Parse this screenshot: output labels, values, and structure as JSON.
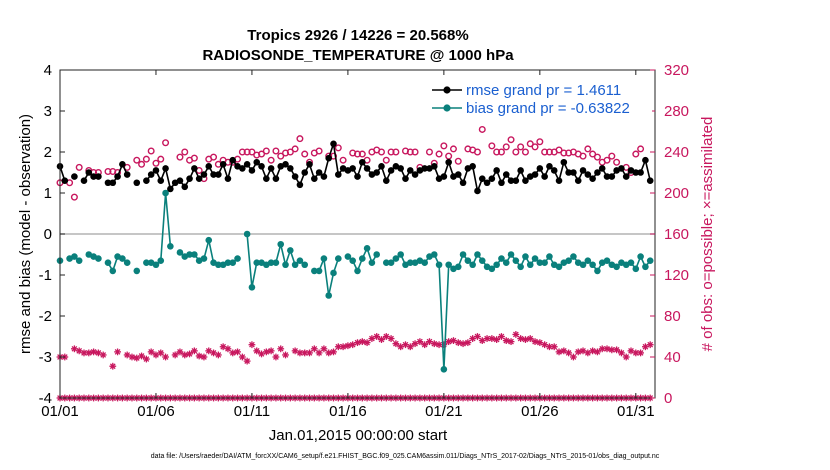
{
  "chart_data": {
    "type": "line",
    "title_line1": "Tropics 2926 / 14226 = 20.568%",
    "title_line2": "RADIOSONDE_TEMPERATURE @ 1000 hPa",
    "xlabel": "Jan.01,2015 00:00:00 start",
    "ylabel_left": "rmse and bias (model - observation)",
    "ylabel_right": "# of obs: o=possible; ×=assimilated",
    "x_tick_labels": [
      "01/01",
      "01/06",
      "01/11",
      "01/16",
      "01/21",
      "01/26",
      "01/31"
    ],
    "x_tick_days": [
      1,
      6,
      11,
      16,
      21,
      26,
      31
    ],
    "x_range_days": [
      1,
      32
    ],
    "ylim_left": [
      -4,
      4
    ],
    "y_ticks_left": [
      "-4",
      "-3",
      "-2",
      "-1",
      "0",
      "1",
      "2",
      "3",
      "4"
    ],
    "ylim_right": [
      0,
      320
    ],
    "y_ticks_right": [
      "0",
      "40",
      "80",
      "120",
      "160",
      "200",
      "240",
      "280",
      "320"
    ],
    "footer": "data file: /Users/raeder/DAI/ATM_forcXX/CAM6_setup/f.e21.FHIST_BGC.f09_025.CAM6assim.011/Diags_NTrS_2017-02/Diags_NTrS_2015-01/obs_diag_output.nc",
    "series": [
      {
        "name": "rmse grand pr = 1.4611",
        "axis": "left",
        "color": "#000000",
        "marker": "filled-circle",
        "x": [
          1.0,
          1.25,
          1.5,
          1.75,
          2.0,
          2.25,
          2.5,
          2.75,
          3.0,
          3.25,
          3.5,
          3.75,
          4.0,
          4.25,
          4.5,
          4.75,
          5.0,
          5.25,
          5.5,
          5.75,
          6.0,
          6.25,
          6.5,
          6.75,
          7.0,
          7.25,
          7.5,
          7.75,
          8.0,
          8.25,
          8.5,
          8.75,
          9.0,
          9.25,
          9.5,
          9.75,
          10.0,
          10.25,
          10.5,
          10.75,
          11.0,
          11.25,
          11.5,
          11.75,
          12.0,
          12.25,
          12.5,
          12.75,
          13.0,
          13.25,
          13.5,
          13.75,
          14.0,
          14.25,
          14.5,
          14.75,
          15.0,
          15.25,
          15.5,
          15.75,
          16.0,
          16.25,
          16.5,
          16.75,
          17.0,
          17.25,
          17.5,
          17.75,
          18.0,
          18.25,
          18.5,
          18.75,
          19.0,
          19.25,
          19.5,
          19.75,
          20.0,
          20.25,
          20.5,
          20.75,
          21.0,
          21.25,
          21.5,
          21.75,
          22.0,
          22.25,
          22.5,
          22.75,
          23.0,
          23.25,
          23.5,
          23.75,
          24.0,
          24.25,
          24.5,
          24.75,
          25.0,
          25.25,
          25.5,
          25.75,
          26.0,
          26.25,
          26.5,
          26.75,
          27.0,
          27.25,
          27.5,
          27.75,
          28.0,
          28.25,
          28.5,
          28.75,
          29.0,
          29.25,
          29.5,
          29.75,
          30.0,
          30.25,
          30.5,
          30.75,
          31.0,
          31.25,
          31.5,
          31.75
        ],
        "values": [
          1.65,
          1.3,
          null,
          1.4,
          null,
          1.3,
          1.5,
          1.4,
          1.4,
          null,
          1.25,
          1.25,
          1.4,
          1.7,
          1.45,
          null,
          1.25,
          null,
          1.3,
          1.45,
          1.55,
          1.3,
          1.6,
          1.1,
          1.25,
          1.3,
          1.15,
          1.35,
          1.6,
          1.35,
          1.45,
          1.65,
          1.45,
          1.45,
          1.7,
          1.35,
          1.8,
          1.65,
          1.6,
          1.7,
          1.55,
          1.75,
          1.65,
          1.35,
          1.6,
          1.35,
          1.65,
          1.7,
          1.6,
          1.4,
          1.2,
          1.5,
          1.7,
          1.35,
          1.5,
          1.4,
          1.85,
          2.2,
          1.45,
          1.6,
          1.55,
          1.6,
          1.4,
          1.75,
          1.6,
          1.45,
          1.5,
          1.65,
          1.3,
          1.55,
          1.65,
          1.6,
          1.35,
          1.55,
          1.45,
          1.55,
          1.6,
          1.6,
          1.65,
          1.35,
          1.4,
          1.75,
          1.4,
          1.45,
          1.25,
          1.6,
          1.65,
          1.05,
          1.35,
          1.25,
          1.35,
          1.55,
          1.25,
          1.45,
          1.3,
          1.3,
          1.55,
          1.3,
          1.4,
          1.45,
          1.6,
          1.4,
          1.65,
          1.55,
          1.3,
          1.75,
          1.5,
          1.5,
          1.3,
          1.55,
          1.45,
          1.35,
          1.5,
          1.6,
          1.4,
          1.4,
          1.55,
          1.6,
          1.4,
          1.55,
          1.5,
          1.5,
          1.8,
          1.3
        ]
      },
      {
        "name": "bias grand pr = -0.63822",
        "axis": "left",
        "color": "#0a807c",
        "marker": "filled-circle",
        "x": [
          1.0,
          1.25,
          1.5,
          1.75,
          2.0,
          2.25,
          2.5,
          2.75,
          3.0,
          3.25,
          3.5,
          3.75,
          4.0,
          4.25,
          4.5,
          4.75,
          5.0,
          5.25,
          5.5,
          5.75,
          6.0,
          6.25,
          6.5,
          6.75,
          7.0,
          7.25,
          7.5,
          7.75,
          8.0,
          8.25,
          8.5,
          8.75,
          9.0,
          9.25,
          9.5,
          9.75,
          10.0,
          10.25,
          10.5,
          10.75,
          11.0,
          11.25,
          11.5,
          11.75,
          12.0,
          12.25,
          12.5,
          12.75,
          13.0,
          13.25,
          13.5,
          13.75,
          14.0,
          14.25,
          14.5,
          14.75,
          15.0,
          15.25,
          15.5,
          15.75,
          16.0,
          16.25,
          16.5,
          16.75,
          17.0,
          17.25,
          17.5,
          17.75,
          18.0,
          18.25,
          18.5,
          18.75,
          19.0,
          19.25,
          19.5,
          19.75,
          20.0,
          20.25,
          20.5,
          20.75,
          21.0,
          21.25,
          21.5,
          21.75,
          22.0,
          22.25,
          22.5,
          22.75,
          23.0,
          23.25,
          23.5,
          23.75,
          24.0,
          24.25,
          24.5,
          24.75,
          25.0,
          25.25,
          25.5,
          25.75,
          26.0,
          26.25,
          26.5,
          26.75,
          27.0,
          27.25,
          27.5,
          27.75,
          28.0,
          28.25,
          28.5,
          28.75,
          29.0,
          29.25,
          29.5,
          29.75,
          30.0,
          30.25,
          30.5,
          30.75,
          31.0,
          31.25,
          31.5,
          31.75
        ],
        "values": [
          -0.65,
          null,
          -0.6,
          -0.55,
          -0.65,
          null,
          -0.5,
          -0.55,
          -0.6,
          null,
          -0.7,
          -0.9,
          -0.55,
          -0.6,
          -0.7,
          null,
          -0.9,
          null,
          -0.7,
          -0.7,
          -0.75,
          -0.65,
          1.0,
          -0.3,
          null,
          -0.45,
          -0.55,
          -0.5,
          -0.5,
          -0.65,
          -0.6,
          -0.15,
          -0.7,
          -0.75,
          -0.75,
          -0.7,
          -0.7,
          -0.6,
          null,
          0.0,
          -1.3,
          -0.7,
          -0.7,
          -0.75,
          -0.7,
          -0.7,
          -0.25,
          -0.75,
          -0.4,
          -0.75,
          -0.65,
          -0.75,
          null,
          -0.9,
          -0.9,
          -0.6,
          -1.5,
          -0.95,
          -0.6,
          null,
          -0.55,
          -0.65,
          -0.9,
          -0.6,
          -0.35,
          -0.7,
          -0.5,
          null,
          -0.7,
          -0.7,
          -0.6,
          -0.5,
          -0.75,
          -0.7,
          -0.7,
          -0.65,
          -0.7,
          -0.55,
          -0.5,
          -0.75,
          -3.3,
          -0.75,
          -0.85,
          -0.8,
          -0.5,
          -0.65,
          -0.75,
          -0.5,
          -0.65,
          -0.8,
          -0.85,
          -0.75,
          -0.6,
          -0.7,
          -0.5,
          -0.65,
          -0.8,
          -0.55,
          -0.75,
          -0.6,
          -0.7,
          -0.7,
          -0.55,
          -0.75,
          -0.8,
          -0.7,
          -0.65,
          -0.55,
          -0.7,
          -0.75,
          -0.65,
          -0.75,
          -0.9,
          -0.7,
          -0.65,
          -0.75,
          -0.8,
          -0.7,
          -0.75,
          -0.7,
          -0.85,
          -0.55,
          -0.8,
          -0.65
        ]
      },
      {
        "name": "possible obs",
        "axis": "right",
        "color": "#c8175e",
        "marker": "open-circle",
        "x": [
          1.0,
          1.25,
          1.5,
          1.75,
          2.0,
          2.25,
          2.5,
          2.75,
          3.0,
          3.25,
          3.5,
          3.75,
          4.0,
          4.25,
          4.5,
          4.75,
          5.0,
          5.25,
          5.5,
          5.75,
          6.0,
          6.25,
          6.5,
          6.75,
          7.0,
          7.25,
          7.5,
          7.75,
          8.0,
          8.25,
          8.5,
          8.75,
          9.0,
          9.25,
          9.5,
          9.75,
          10.0,
          10.25,
          10.5,
          10.75,
          11.0,
          11.25,
          11.5,
          11.75,
          12.0,
          12.25,
          12.5,
          12.75,
          13.0,
          13.25,
          13.5,
          13.75,
          14.0,
          14.25,
          14.5,
          14.75,
          15.0,
          15.25,
          15.5,
          15.75,
          16.0,
          16.25,
          16.5,
          16.75,
          17.0,
          17.25,
          17.5,
          17.75,
          18.0,
          18.25,
          18.5,
          18.75,
          19.0,
          19.25,
          19.5,
          19.75,
          20.0,
          20.25,
          20.5,
          20.75,
          21.0,
          21.25,
          21.5,
          21.75,
          22.0,
          22.25,
          22.5,
          22.75,
          23.0,
          23.25,
          23.5,
          23.75,
          24.0,
          24.25,
          24.5,
          24.75,
          25.0,
          25.25,
          25.5,
          25.75,
          26.0,
          26.25,
          26.5,
          26.75,
          27.0,
          27.25,
          27.5,
          27.75,
          28.0,
          28.25,
          28.5,
          28.75,
          29.0,
          29.25,
          29.5,
          29.75,
          30.0,
          30.25,
          30.5,
          30.75,
          31.0,
          31.25,
          31.5,
          31.75
        ],
        "values": [
          210,
          null,
          210,
          196,
          225,
          null,
          222,
          220,
          220,
          null,
          221,
          221,
          220,
          null,
          225,
          null,
          232,
          228,
          233,
          241,
          229,
          233,
          249,
          null,
          null,
          235,
          240,
          232,
          234,
          222,
          214,
          233,
          235,
          228,
          232,
          230,
          230,
          233,
          240,
          240,
          240,
          237,
          238,
          241,
          232,
          241,
          236,
          239,
          240,
          243,
          253,
          238,
          230,
          239,
          241,
          null,
          236,
          236,
          244,
          232,
          null,
          239,
          238,
          238,
          232,
          240,
          242,
          240,
          232,
          240,
          240,
          null,
          241,
          240,
          240,
          225,
          null,
          240,
          229,
          238,
          246,
          236,
          243,
          231,
          null,
          243,
          242,
          240,
          262,
          null,
          246,
          240,
          240,
          245,
          252,
          240,
          245,
          240,
          248,
          245,
          250,
          240,
          240,
          240,
          242,
          239,
          239,
          240,
          238,
          236,
          243,
          238,
          235,
          230,
          232,
          236,
          230,
          null,
          225,
          220,
          238,
          243,
          null,
          null
        ]
      },
      {
        "name": "assimilated obs",
        "axis": "right",
        "color": "#c8175e",
        "marker": "asterisk",
        "x": [
          1.0,
          1.25,
          1.5,
          1.75,
          2.0,
          2.25,
          2.5,
          2.75,
          3.0,
          3.25,
          3.5,
          3.75,
          4.0,
          4.25,
          4.5,
          4.75,
          5.0,
          5.25,
          5.5,
          5.75,
          6.0,
          6.25,
          6.5,
          6.75,
          7.0,
          7.25,
          7.5,
          7.75,
          8.0,
          8.25,
          8.5,
          8.75,
          9.0,
          9.25,
          9.5,
          9.75,
          10.0,
          10.25,
          10.5,
          10.75,
          11.0,
          11.25,
          11.5,
          11.75,
          12.0,
          12.25,
          12.5,
          12.75,
          13.0,
          13.25,
          13.5,
          13.75,
          14.0,
          14.25,
          14.5,
          14.75,
          15.0,
          15.25,
          15.5,
          15.75,
          16.0,
          16.25,
          16.5,
          16.75,
          17.0,
          17.25,
          17.5,
          17.75,
          18.0,
          18.25,
          18.5,
          18.75,
          19.0,
          19.25,
          19.5,
          19.75,
          20.0,
          20.25,
          20.5,
          20.75,
          21.0,
          21.25,
          21.5,
          21.75,
          22.0,
          22.25,
          22.5,
          22.75,
          23.0,
          23.25,
          23.5,
          23.75,
          24.0,
          24.25,
          24.5,
          24.75,
          25.0,
          25.25,
          25.5,
          25.75,
          26.0,
          26.25,
          26.5,
          26.75,
          27.0,
          27.25,
          27.5,
          27.75,
          28.0,
          28.25,
          28.5,
          28.75,
          29.0,
          29.25,
          29.5,
          29.75,
          30.0,
          30.25,
          30.5,
          30.75,
          31.0,
          31.25,
          31.5,
          31.75
        ],
        "values": [
          40,
          40,
          null,
          48,
          46,
          44,
          44,
          45,
          44,
          42,
          null,
          31,
          45,
          null,
          42,
          40,
          39,
          41,
          38,
          45,
          42,
          44,
          40,
          null,
          42,
          45,
          42,
          43,
          46,
          41,
          40,
          46,
          44,
          42,
          50,
          48,
          44,
          45,
          40,
          36,
          52,
          46,
          43,
          45,
          46,
          40,
          48,
          42,
          null,
          46,
          44,
          44,
          44,
          48,
          44,
          48,
          44,
          45,
          50,
          50,
          51,
          52,
          54,
          55,
          54,
          58,
          60,
          57,
          60,
          58,
          53,
          50,
          52,
          50,
          53,
          55,
          52,
          55,
          53,
          52,
          52,
          55,
          56,
          54,
          53,
          54,
          58,
          60,
          56,
          58,
          58,
          57,
          60,
          56,
          55,
          62,
          58,
          57,
          58,
          55,
          54,
          52,
          50,
          50,
          45,
          46,
          44,
          40,
          45,
          46,
          44,
          46,
          45,
          48,
          48,
          47,
          47,
          44,
          40,
          46,
          44,
          44,
          50,
          52
        ]
      }
    ]
  }
}
